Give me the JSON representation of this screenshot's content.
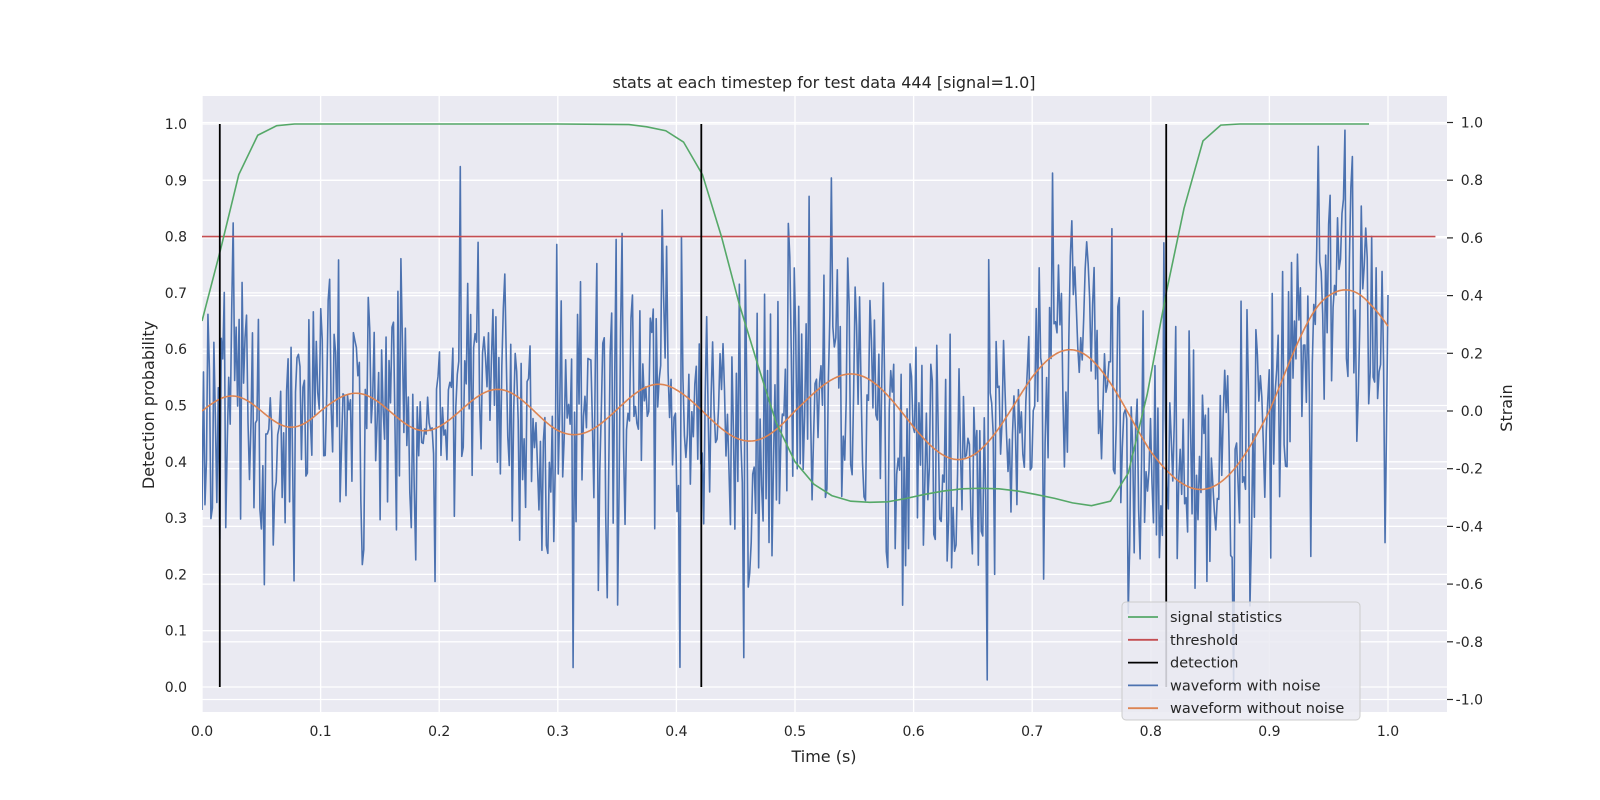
{
  "chart_data": {
    "type": "line",
    "title": "stats at each timestep for test data 444 [signal=1.0]",
    "xlabel": "Time (s)",
    "ylabel_left": "Detection probability",
    "ylabel_right": "Strain",
    "xlim": [
      0.0,
      1.05
    ],
    "ylim_left": [
      -0.045,
      1.045
    ],
    "ylim_right": [
      -1.05,
      1.1
    ],
    "x_ticks": [
      "0.0",
      "0.1",
      "0.2",
      "0.3",
      "0.4",
      "0.5",
      "0.6",
      "0.7",
      "0.8",
      "0.9",
      "1.0"
    ],
    "y_left_ticks": [
      "0.0",
      "0.1",
      "0.2",
      "0.3",
      "0.4",
      "0.5",
      "0.6",
      "0.7",
      "0.8",
      "0.9",
      "1.0"
    ],
    "y_right_ticks": [
      "1.0",
      "0.8",
      "0.6",
      "0.4",
      "0.2",
      "0.0",
      "-0.2",
      "-0.4",
      "-0.6",
      "-0.8",
      "-1.0"
    ],
    "grid": true,
    "legend_position": "lower-right",
    "series": [
      {
        "name": "signal statistics",
        "axis": "left",
        "color": "#55a868",
        "x": [
          0.0,
          0.016,
          0.031,
          0.047,
          0.063,
          0.078,
          0.094,
          0.2,
          0.3,
          0.36,
          0.375,
          0.391,
          0.406,
          0.422,
          0.438,
          0.453,
          0.469,
          0.484,
          0.5,
          0.516,
          0.531,
          0.547,
          0.563,
          0.578,
          0.594,
          0.609,
          0.625,
          0.641,
          0.656,
          0.672,
          0.688,
          0.703,
          0.719,
          0.734,
          0.75,
          0.766,
          0.781,
          0.797,
          0.813,
          0.828,
          0.844,
          0.859,
          0.875,
          0.9,
          0.95,
          0.984
        ],
        "y": [
          0.65,
          0.78,
          0.91,
          0.98,
          0.997,
          1.0,
          1.0,
          1.0,
          1.0,
          0.999,
          0.995,
          0.988,
          0.968,
          0.91,
          0.8,
          0.68,
          0.57,
          0.47,
          0.4,
          0.36,
          0.34,
          0.33,
          0.328,
          0.329,
          0.335,
          0.342,
          0.348,
          0.352,
          0.353,
          0.352,
          0.348,
          0.342,
          0.335,
          0.327,
          0.322,
          0.33,
          0.38,
          0.52,
          0.7,
          0.85,
          0.97,
          0.998,
          1.0,
          1.0,
          1.0,
          1.0
        ]
      },
      {
        "name": "threshold",
        "axis": "left",
        "color": "#c44e52",
        "x": [
          0.0,
          1.04
        ],
        "y": [
          0.8,
          0.8
        ]
      },
      {
        "name": "detection",
        "axis": "left",
        "color": "#000000",
        "x": [
          0.015,
          0.421,
          0.813
        ],
        "y_range": [
          0.0,
          1.0
        ]
      },
      {
        "name": "waveform with noise",
        "axis": "right",
        "color": "#4c72b0",
        "x_range": [
          0.0,
          1.0
        ],
        "n_points": 800,
        "noise_std": 0.27,
        "y_extent": [
          -0.95,
          1.0
        ]
      },
      {
        "name": "waveform without noise",
        "axis": "right",
        "color": "#dd8452",
        "x": [
          0.0,
          0.1,
          0.2,
          0.3,
          0.4,
          0.5,
          0.6,
          0.7,
          0.8,
          0.9,
          0.95,
          0.985,
          1.0
        ],
        "amplitude": [
          0.05,
          0.058,
          0.07,
          0.08,
          0.095,
          0.11,
          0.15,
          0.2,
          0.24,
          0.32,
          0.4,
          0.48,
          0.5
        ],
        "cycle_time": [
          0.0,
          0.05,
          0.093,
          0.133,
          0.168,
          0.2,
          0.228,
          0.255,
          0.28,
          0.3,
          0.312,
          0.318,
          0.32
        ]
      }
    ]
  }
}
